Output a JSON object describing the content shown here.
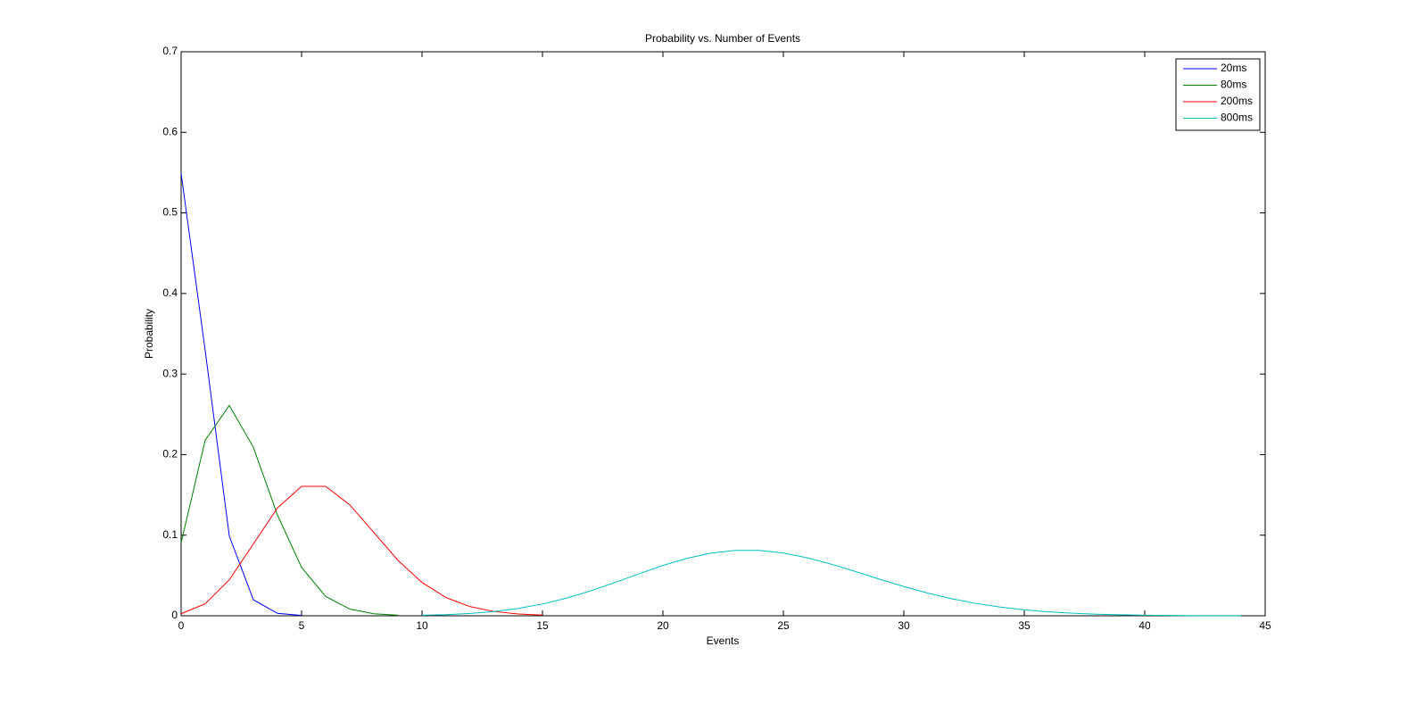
{
  "chart_data": {
    "type": "line",
    "title": "Probability vs. Number of Events",
    "x_label": "Events",
    "y_label": "Probability",
    "xlim": [
      0,
      45
    ],
    "xticks": [
      0,
      5,
      10,
      15,
      20,
      25,
      30,
      35,
      40,
      45
    ],
    "ylim": [
      0,
      0.7
    ],
    "yticks": [
      0,
      0.1,
      0.2,
      0.3,
      0.4,
      0.5,
      0.6,
      0.7
    ],
    "grid": false,
    "legend": "upper-right",
    "series": [
      {
        "name": "20ms",
        "color": "#0000ff",
        "x": [
          0,
          1,
          2,
          3,
          4,
          5
        ],
        "values": [
          0.549,
          0.329,
          0.099,
          0.0198,
          0.003,
          0.0004
        ]
      },
      {
        "name": "80ms",
        "color": "#008000",
        "x": [
          0,
          1,
          2,
          3,
          4,
          5,
          6,
          7,
          8,
          9
        ],
        "values": [
          0.0907,
          0.218,
          0.261,
          0.209,
          0.125,
          0.06,
          0.024,
          0.0083,
          0.0025,
          0.0007
        ]
      },
      {
        "name": "200ms",
        "color": "#ff0000",
        "x": [
          0,
          1,
          2,
          3,
          4,
          5,
          6,
          7,
          8,
          9,
          10,
          11,
          12,
          13,
          14,
          15
        ],
        "values": [
          0.0025,
          0.0149,
          0.0446,
          0.0892,
          0.1339,
          0.1606,
          0.1606,
          0.1377,
          0.1033,
          0.0688,
          0.0413,
          0.0225,
          0.0113,
          0.0052,
          0.0022,
          0.0009
        ]
      },
      {
        "name": "800ms",
        "color": "#00bfbf",
        "x": [
          10,
          11,
          12,
          13,
          14,
          15,
          16,
          17,
          18,
          19,
          20,
          21,
          22,
          23,
          24,
          25,
          26,
          27,
          28,
          29,
          30,
          31,
          32,
          33,
          34,
          35,
          36,
          37,
          38,
          39,
          40,
          41,
          42,
          43,
          44
        ],
        "values": [
          0.0007,
          0.0014,
          0.0029,
          0.0053,
          0.0091,
          0.0146,
          0.0219,
          0.0309,
          0.0412,
          0.052,
          0.0624,
          0.0713,
          0.0778,
          0.0811,
          0.0811,
          0.0779,
          0.0719,
          0.0639,
          0.0548,
          0.0453,
          0.0363,
          0.0281,
          0.0211,
          0.0153,
          0.0108,
          0.0074,
          0.0049,
          0.0032,
          0.002,
          0.0012,
          0.0007,
          0.0004,
          0.0002,
          0.0001,
          0.0001
        ]
      }
    ]
  }
}
